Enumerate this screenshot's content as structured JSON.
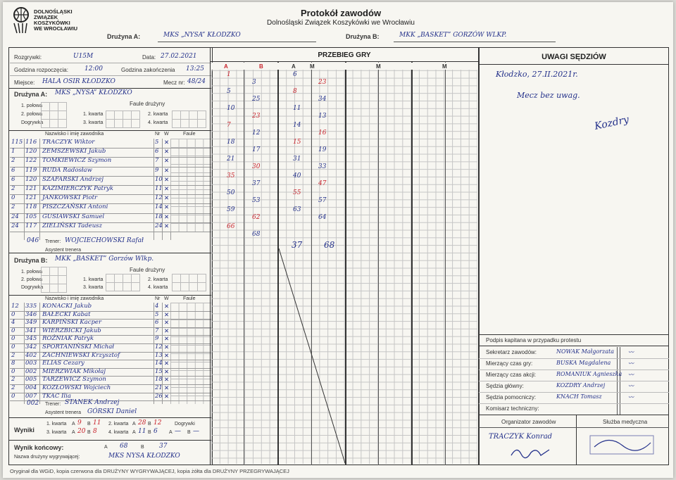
{
  "header": {
    "logo_text_1": "DOLNOŚLĄSKI",
    "logo_text_2": "ZWIĄZEK",
    "logo_text_3": "KOSZYKÓWKI",
    "logo_text_4": "WE WROCŁAWIU",
    "title": "Protokół zawodów",
    "subtitle": "Dolnośląski Związek Koszykówki we Wrocławiu",
    "team_a_label": "Drużyna A:",
    "team_a_value": "MKS „NYSA” KŁODZKO",
    "team_b_label": "Drużyna B:",
    "team_b_value": "MKK „BASKET” GORZÓW WLKP."
  },
  "info": {
    "rozgrywki_label": "Rozgrywki:",
    "rozgrywki_value": "U15M",
    "data_label": "Data:",
    "data_value": "27.02.2021",
    "start_label": "Godzina rozpoczęcia:",
    "start_value": "12:00",
    "end_label": "Godzina zakończenia",
    "end_value": "13:25",
    "miejsce_label": "Miejsce:",
    "miejsce_value": "HALA OSIR KŁODZKO",
    "mecz_label": "Mecz nr:",
    "mecz_value": "48/24"
  },
  "team_a": {
    "label": "Drużyna A:",
    "name": "MKS „NYSA” KŁODZKO",
    "fauls_label": "Faule drużyny",
    "p1": "1. połowa",
    "p2": "2. połowa",
    "ot": "Dogrywka",
    "q1": "1. kwarta",
    "q2": "2. kwarta",
    "q3": "3. kwarta",
    "q4": "4. kwarta",
    "col_nazwisko": "Nazwisko i imię zawodnika",
    "col_nr": "Nr",
    "col_w": "W",
    "col_faule": "Faule",
    "players": [
      {
        "lic": "115",
        "num": "116",
        "name": "TRACZYK Wiktor",
        "nr": "5"
      },
      {
        "lic": "1",
        "num": "120",
        "name": "ZEMSZEWSKI Jakub",
        "nr": "6"
      },
      {
        "lic": "2",
        "num": "122",
        "name": "TOMKIEWICZ Szymon",
        "nr": "7"
      },
      {
        "lic": "6",
        "num": "119",
        "name": "RUDA Radosław",
        "nr": "9"
      },
      {
        "lic": "6",
        "num": "120",
        "name": "SZAFARSKI Andrzej",
        "nr": "10"
      },
      {
        "lic": "2",
        "num": "121",
        "name": "KAZIMIERCZYK Patryk",
        "nr": "11"
      },
      {
        "lic": "0",
        "num": "121",
        "name": "JANKOWSKI Piotr",
        "nr": "12"
      },
      {
        "lic": "2",
        "num": "118",
        "name": "PISZCZAŃSKI Antoni",
        "nr": "14"
      },
      {
        "lic": "24",
        "num": "105",
        "name": "GUSIAWSKI Samuel",
        "nr": "18"
      },
      {
        "lic": "24",
        "num": "117",
        "name": "ZIELIŃSKI Tadeusz",
        "nr": "24"
      }
    ],
    "coach_num": "046",
    "coach_label": "Trener:",
    "coach_name": "WOJCIECHOWSKI Rafał",
    "assistant_label": "Asystent trenera"
  },
  "team_b": {
    "label": "Drużyna B:",
    "name": "MKK „BASKET” Gorzów Wlkp.",
    "fauls_label": "Faule drużyny",
    "p1": "1. połowa",
    "p2": "2. połowa",
    "ot": "Dogrywka",
    "q1": "1. kwarta",
    "q2": "2. kwarta",
    "q3": "3. kwarta",
    "q4": "4. kwarta",
    "col_nazwisko": "Nazwisko i imię zawodnika",
    "col_nr": "Nr",
    "col_w": "W",
    "col_faule": "Faule",
    "players": [
      {
        "lic": "12",
        "num": "335",
        "name": "KONACKI Jakub",
        "nr": "4"
      },
      {
        "lic": "0",
        "num": "346",
        "name": "BAŁECKI Kabat",
        "nr": "5"
      },
      {
        "lic": "4",
        "num": "349",
        "name": "KARPIŃSKI Kacper",
        "nr": "6"
      },
      {
        "lic": "0",
        "num": "341",
        "name": "WIERZBICKI Jakub",
        "nr": "7"
      },
      {
        "lic": "0",
        "num": "345",
        "name": "ROŻNIAK Patryk",
        "nr": "9"
      },
      {
        "lic": "0",
        "num": "342",
        "name": "SPORTANIŃSKI Michał",
        "nr": "12"
      },
      {
        "lic": "2",
        "num": "402",
        "name": "ZACHNIEWSKI Krzysztof",
        "nr": "13"
      },
      {
        "lic": "8",
        "num": "003",
        "name": "ELIAS Cezary",
        "nr": "14"
      },
      {
        "lic": "0",
        "num": "002",
        "name": "MIERZWIAK Mikołaj",
        "nr": "15"
      },
      {
        "lic": "2",
        "num": "005",
        "name": "TARZEWICZ Szymon",
        "nr": "18"
      },
      {
        "lic": "2",
        "num": "004",
        "name": "KOZŁOWSKI Wojciech",
        "nr": "21"
      },
      {
        "lic": "0",
        "num": "007",
        "name": "TKAC Ilia",
        "nr": "26"
      }
    ],
    "coach_num": "002",
    "coach_label": "Trener:",
    "coach_name": "STANEK Andrzej",
    "assistant_label": "Asystent trenera",
    "assistant_name": "GÓRSKI Daniel"
  },
  "results": {
    "label": "Wyniki",
    "q1_label": "1. kwarta",
    "q1_a": "9",
    "q1_b": "11",
    "q2_label": "2. kwarta",
    "q2_a": "28",
    "q2_b": "12",
    "q3_label": "3. kwarta",
    "q3_a": "20",
    "q3_b": "8",
    "q4_label": "4. kwarta",
    "q4_a": "11",
    "q4_b": "6",
    "ot_label": "Dogrywki",
    "ot_a": "—",
    "ot_b": "—",
    "a": "A",
    "b": "B"
  },
  "final": {
    "label": "Wynik końcowy:",
    "a": "A",
    "a_score": "68",
    "b": "B",
    "b_score": "37",
    "winner_label": "Nazwa drużyny wygrywającej:",
    "winner": "MKS NYSA KŁODZKO"
  },
  "running": {
    "title": "PRZEBIEG GRY",
    "col_a": "A",
    "col_b": "B",
    "col_m": "M",
    "final_a": "68",
    "final_b": "37",
    "scores": [
      "1",
      "3",
      "6",
      "23",
      "5",
      "25",
      "8",
      "34",
      "10",
      "23",
      "11",
      "13",
      "7",
      "12",
      "14",
      "16",
      "18",
      "17",
      "15",
      "19",
      "21",
      "30",
      "31",
      "33",
      "35",
      "37",
      "40",
      "47",
      "50",
      "53",
      "55",
      "57",
      "59",
      "62",
      "63",
      "64",
      "66",
      "68"
    ]
  },
  "referees_notes": {
    "title": "UWAGI SĘDZIÓW",
    "line1": "Kłodzko, 27.II.2021r.",
    "line2": "Mecz bez uwag.",
    "signature": "Kozdry"
  },
  "officials": {
    "protest_label": "Podpis kapitana w przypadku protestu",
    "rows": [
      {
        "label": "Sekretarz zawodów:",
        "name": "NOWAK Małgorzata"
      },
      {
        "label": "Mierzący czas gry:",
        "name": "BUSKA Magdalena"
      },
      {
        "label": "Mierzący czas akcji:",
        "name": "ROMANIUK Agnieszka"
      },
      {
        "label": "Sędzia główny:",
        "name": "KOZDRY Andrzej"
      },
      {
        "label": "Sędzia pomocniczy:",
        "name": "KNACH Tomasz"
      },
      {
        "label": "Komisarz techniczny:",
        "name": ""
      }
    ],
    "organizer_label": "Organizator zawodów",
    "organizer_name": "TRACZYK Konrad",
    "medical_label": "Służba medyczna"
  },
  "footer": "Oryginał dla WGiD, kopia czerwona dla DRUŻYNY WYGRYWAJĄCEJ, kopia żółta dla DRUŻYNY PRZEGRYWAJĄCEJ"
}
